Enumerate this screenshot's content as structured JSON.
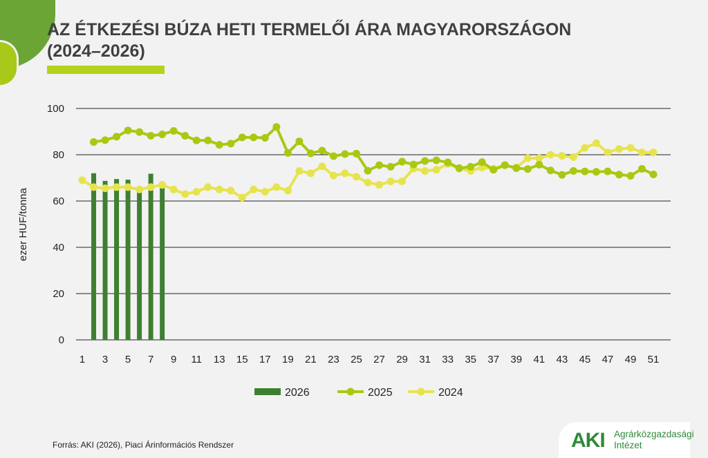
{
  "title_line1": "AZ ÉTKEZÉSI BÚZA HETI TERMELŐI ÁRA MAGYARORSZÁGON",
  "title_line2": "(2024–2026)",
  "source": "Forrás: AKI (2026), Piaci Árinformációs Rendszer",
  "logo": {
    "mark": "AKI",
    "line1": "Agrárközgazdasági",
    "line2": "Intézet"
  },
  "chart_data": {
    "type": "bar+line",
    "ylabel": "ezer HUF/tonna",
    "ylim": [
      0,
      100
    ],
    "yticks": [
      0,
      20,
      40,
      60,
      80,
      100
    ],
    "xticks": [
      1,
      3,
      5,
      7,
      9,
      11,
      13,
      15,
      17,
      19,
      21,
      23,
      25,
      27,
      29,
      31,
      33,
      35,
      37,
      39,
      41,
      43,
      45,
      47,
      49,
      51
    ],
    "grid": true,
    "legend": "bottom",
    "series": [
      {
        "name": "2026",
        "kind": "bar",
        "color": "#3f7f32",
        "x": [
          2,
          3,
          4,
          5,
          6,
          7,
          8
        ],
        "values": [
          72,
          68.7,
          69.5,
          69.2,
          66,
          71.8,
          67
        ]
      },
      {
        "name": "2025",
        "kind": "line",
        "color": "#a9c812",
        "x": [
          2,
          3,
          4,
          5,
          6,
          7,
          8,
          9,
          10,
          11,
          12,
          13,
          14,
          15,
          16,
          17,
          18,
          19,
          20,
          21,
          22,
          23,
          24,
          25,
          26,
          27,
          28,
          29,
          30,
          31,
          32,
          33,
          34,
          35,
          36,
          37,
          38,
          39,
          40,
          41,
          42,
          43,
          44,
          45,
          46,
          47,
          48,
          49,
          50,
          51
        ],
        "values": [
          85.5,
          86.3,
          87.8,
          90.5,
          89.8,
          88.2,
          88.8,
          90.3,
          88.2,
          86.2,
          86.2,
          84.3,
          84.8,
          87.5,
          87.5,
          87.3,
          92,
          80.8,
          85.8,
          80.6,
          81.8,
          79.4,
          80.3,
          80.5,
          73.1,
          75.5,
          74.8,
          77,
          75.8,
          77.3,
          77.6,
          76.7,
          74.2,
          74.8,
          76.8,
          73.5,
          75.5,
          74.2,
          73.8,
          75.7,
          73.2,
          71.3,
          73,
          72.8,
          72.6,
          72.8,
          71.4,
          70.9,
          73.9,
          71.5
        ]
      },
      {
        "name": "2024",
        "kind": "line",
        "color": "#e6e44e",
        "x": [
          1,
          2,
          3,
          4,
          5,
          6,
          7,
          8,
          9,
          10,
          11,
          12,
          13,
          14,
          15,
          16,
          17,
          18,
          19,
          20,
          21,
          22,
          23,
          24,
          25,
          26,
          27,
          28,
          29,
          30,
          31,
          32,
          33,
          34,
          35,
          36,
          37,
          38,
          39,
          40,
          41,
          42,
          43,
          44,
          45,
          46,
          47,
          48,
          49,
          50,
          51
        ],
        "values": [
          69,
          66,
          65.5,
          66,
          66,
          65,
          66,
          67,
          65,
          63,
          64,
          66,
          65,
          64.5,
          61.5,
          65,
          64,
          66,
          64.5,
          73,
          72,
          75,
          71,
          72,
          70.5,
          68,
          67,
          68.5,
          68.5,
          74,
          73,
          73.5,
          76,
          74,
          73,
          74.5,
          74,
          75.5,
          74.5,
          78.5,
          78.5,
          80,
          79.5,
          79,
          83,
          85,
          81,
          82.5,
          83,
          81,
          81
        ]
      }
    ]
  }
}
